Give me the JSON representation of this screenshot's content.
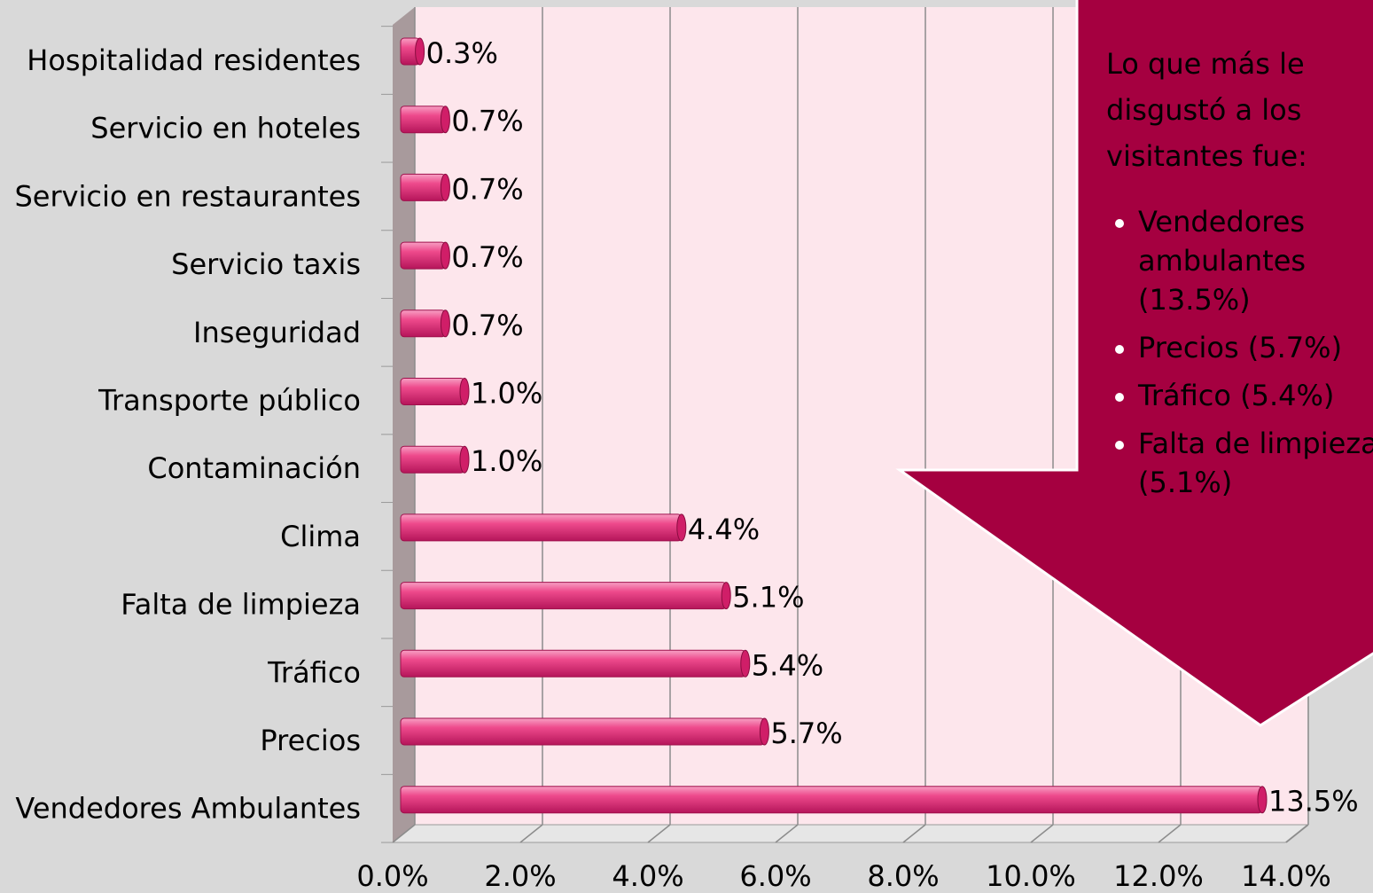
{
  "chart_data": {
    "type": "bar",
    "orientation": "horizontal",
    "categories": [
      "Hospitalidad residentes",
      "Servicio en hoteles",
      "Servicio en restaurantes",
      "Servicio taxis",
      "Inseguridad",
      "Transporte público",
      "Contaminación",
      "Clima",
      "Falta de limpieza",
      "Tráfico",
      "Precios",
      "Vendedores Ambulantes"
    ],
    "values": [
      0.3,
      0.7,
      0.7,
      0.7,
      0.7,
      1.0,
      1.0,
      4.4,
      5.1,
      5.4,
      5.7,
      13.5
    ],
    "value_labels": [
      "0.3%",
      "0.7%",
      "0.7%",
      "0.7%",
      "0.7%",
      "1.0%",
      "1.0%",
      "4.4%",
      "5.1%",
      "5.4%",
      "5.7%",
      "13.5%"
    ],
    "color": "#e8307a",
    "xlim": [
      0,
      14
    ],
    "xticks": [
      {
        "value": 0,
        "label": "0.0%"
      },
      {
        "value": 2,
        "label": "2.0%"
      },
      {
        "value": 4,
        "label": "4.0%"
      },
      {
        "value": 6,
        "label": "6.0%"
      },
      {
        "value": 8,
        "label": "8.0%"
      },
      {
        "value": 10,
        "label": "10.0%"
      },
      {
        "value": 12,
        "label": "12.0%"
      },
      {
        "value": 14,
        "label": "14.0%"
      }
    ],
    "grid": true
  },
  "callout": {
    "title": [
      "Lo que más le",
      "disgustó a los",
      "visitantes fue:"
    ],
    "bullets": [
      [
        "Vendedores",
        "ambulantes",
        "(13.5%)"
      ],
      [
        "Precios (5.7%)"
      ],
      [
        "Tráfico (5.4%)"
      ],
      [
        "Falta de limpieza",
        "(5.1%)"
      ]
    ],
    "color": "#a50040"
  }
}
